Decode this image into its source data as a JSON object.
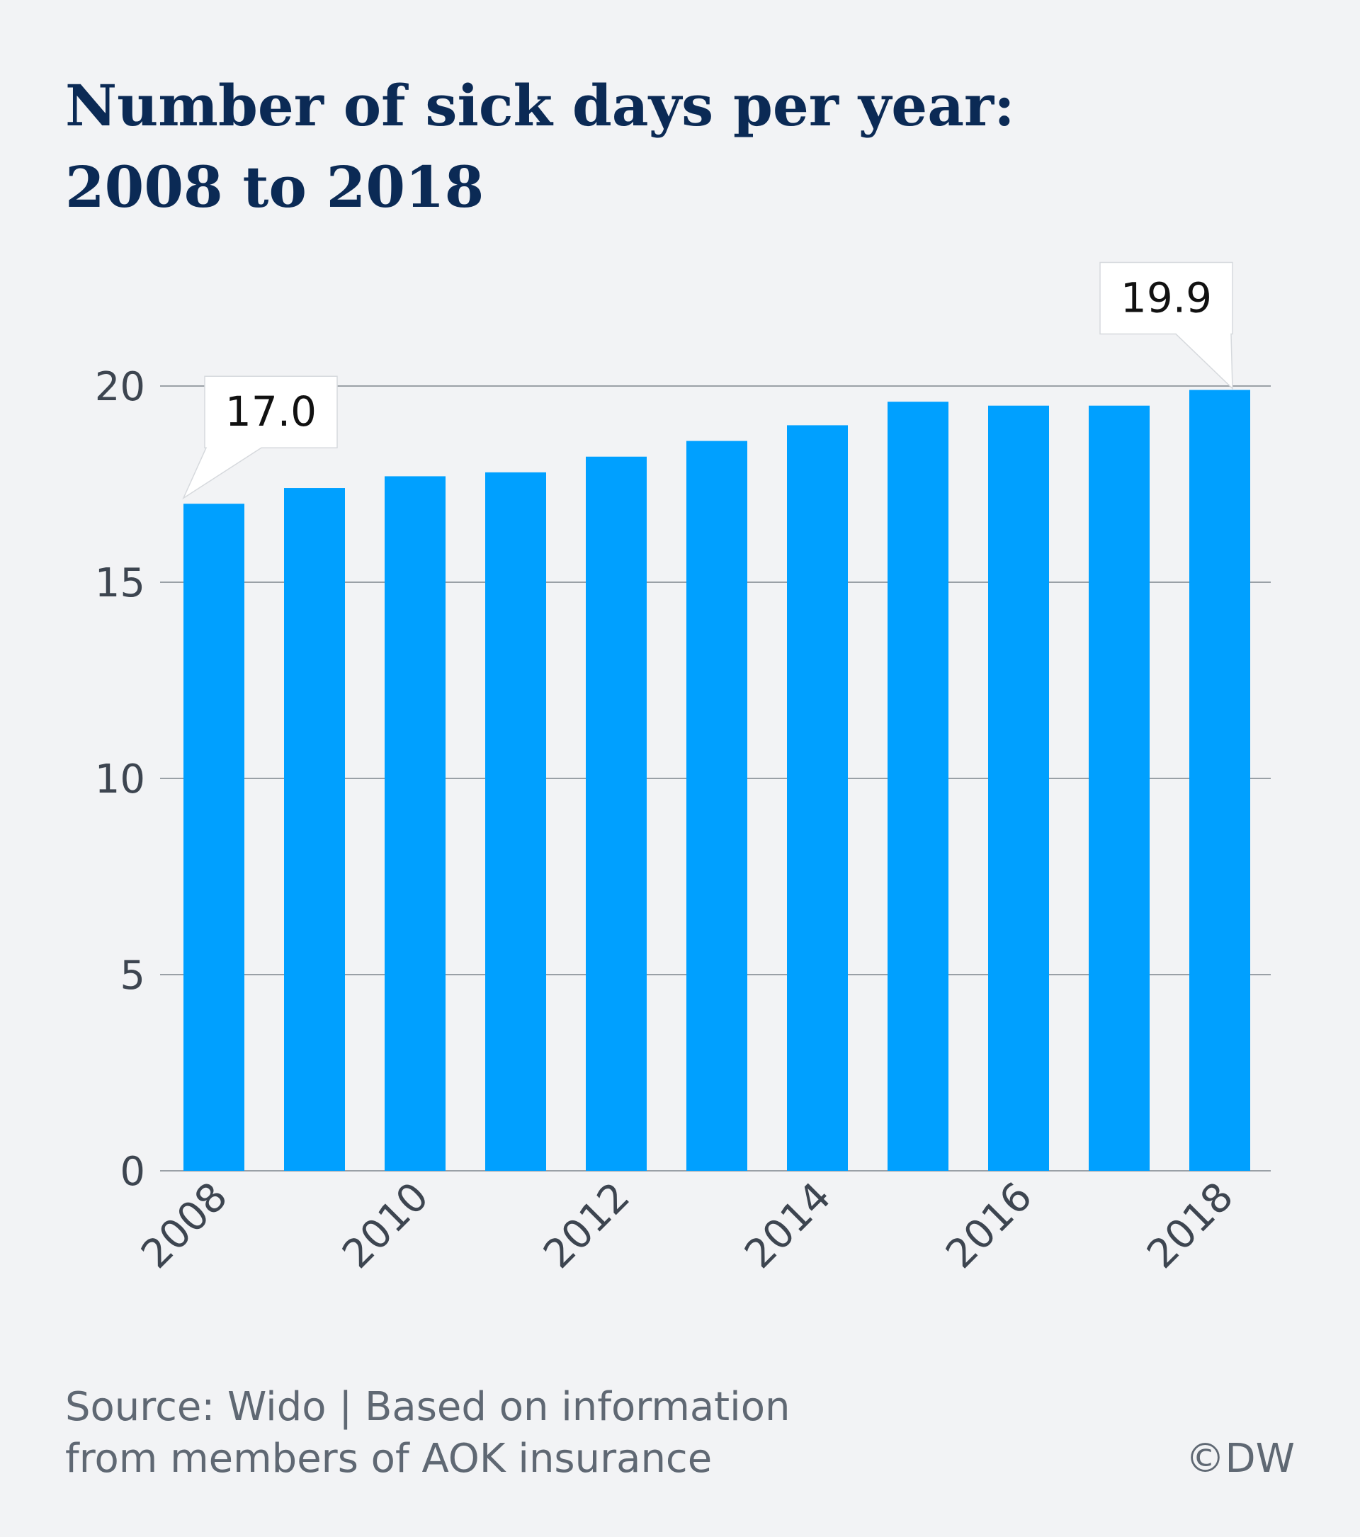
{
  "title_lines": [
    "Number of sick days per year:",
    "2008 to 2018"
  ],
  "source_lines": [
    "Source: Wido | Based on information",
    "from members of AOK insurance"
  ],
  "credit": "©DW",
  "colors": {
    "bar": "#00a0ff",
    "title": "#0b2a55",
    "grid": "#9aa0a6",
    "text": "#3d4550",
    "background": "#f2f3f5"
  },
  "chart_data": {
    "type": "bar",
    "title": "Number of sick days per year: 2008 to 2018",
    "xlabel": "",
    "ylabel": "",
    "categories": [
      "2008",
      "2009",
      "2010",
      "2011",
      "2012",
      "2013",
      "2014",
      "2015",
      "2016",
      "2017",
      "2018"
    ],
    "x_tick_labels": [
      "2008",
      "2010",
      "2012",
      "2014",
      "2016",
      "2018"
    ],
    "values": [
      17.0,
      17.4,
      17.7,
      17.8,
      18.2,
      18.6,
      19.0,
      19.6,
      19.5,
      19.5,
      19.9
    ],
    "ylim": [
      0,
      20
    ],
    "y_ticks": [
      "0",
      "5",
      "10",
      "15",
      "20"
    ],
    "grid": "horizontal",
    "annotations": [
      {
        "category": "2008",
        "label": "17.0"
      },
      {
        "category": "2018",
        "label": "19.9"
      }
    ]
  }
}
